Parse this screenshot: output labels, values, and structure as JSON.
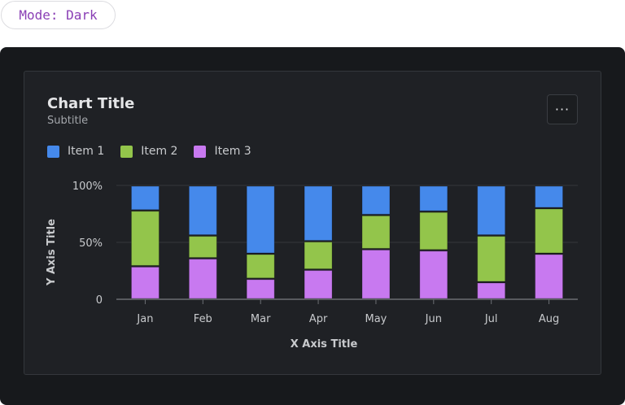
{
  "mode_label": "Mode: Dark",
  "header": {
    "title": "Chart Title",
    "subtitle": "Subtitle",
    "more_icon": "more-horizontal-icon",
    "more_label": "···"
  },
  "colors": {
    "Item 1": "#4589eb",
    "Item 2": "#93c54b",
    "Item 3": "#c879f0"
  },
  "chart_data": {
    "type": "bar",
    "stacked": "percent",
    "title": "Chart Title",
    "subtitle": "Subtitle",
    "xlabel": "X Axis Title",
    "ylabel": "Y Axis Title",
    "categories": [
      "Jan",
      "Feb",
      "Mar",
      "Apr",
      "May",
      "Jun",
      "Jul",
      "Aug"
    ],
    "series": [
      {
        "name": "Item 1",
        "values": [
          22,
          44,
          60,
          49,
          26,
          23,
          44,
          20
        ]
      },
      {
        "name": "Item 2",
        "values": [
          49,
          20,
          22,
          25,
          30,
          34,
          41,
          40
        ]
      },
      {
        "name": "Item 3",
        "values": [
          29,
          36,
          18,
          26,
          44,
          43,
          15,
          40
        ]
      }
    ],
    "ylim": [
      0,
      100
    ],
    "yticks": [
      "0",
      "50%",
      "100%"
    ],
    "grid": true,
    "legend": "top-left"
  }
}
